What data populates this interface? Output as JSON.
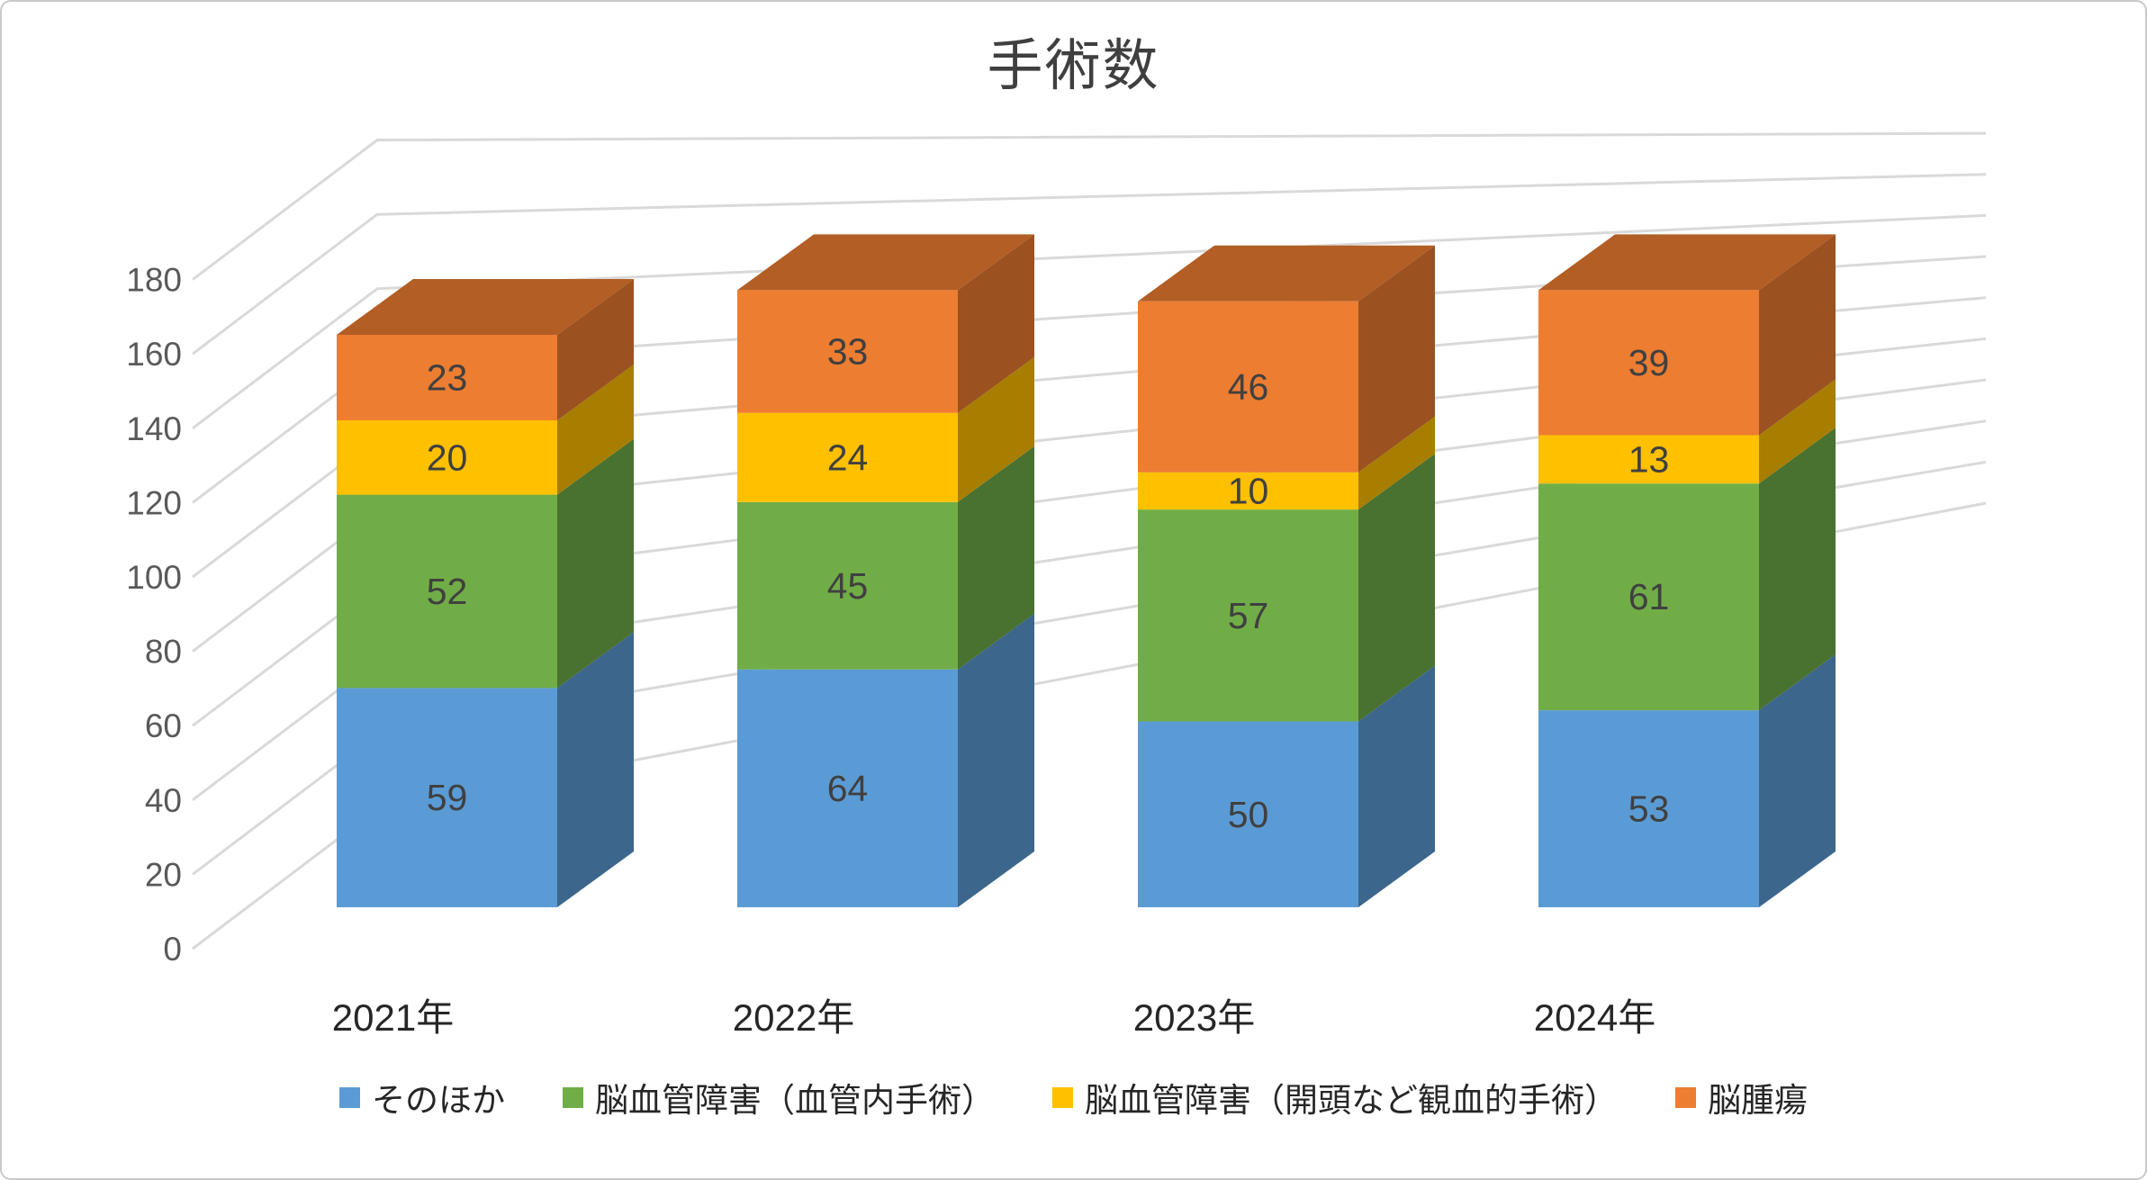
{
  "title": "手術数",
  "chart_data": {
    "type": "bar",
    "stacked": true,
    "effect": "3d-column",
    "title": "手術数",
    "categories": [
      "2021年",
      "2022年",
      "2023年",
      "2024年"
    ],
    "series": [
      {
        "name": "そのほか",
        "color": "#5B9BD5",
        "values": [
          59,
          64,
          50,
          53
        ]
      },
      {
        "name": "脳血管障害（血管内手術）",
        "color": "#70AD47",
        "values": [
          52,
          45,
          57,
          61
        ]
      },
      {
        "name": "脳血管障害（開頭など観血的手術）",
        "color": "#FFC000",
        "values": [
          20,
          24,
          10,
          13
        ]
      },
      {
        "name": "脳腫瘍",
        "color": "#ED7D31",
        "values": [
          23,
          33,
          46,
          39
        ]
      }
    ],
    "totals": [
      154,
      166,
      163,
      166
    ],
    "ylim": [
      0,
      180
    ],
    "ytick_step": 20,
    "yticks": [
      "0",
      "20",
      "40",
      "60",
      "80",
      "100",
      "120",
      "140",
      "160",
      "180"
    ],
    "xlabel": "",
    "ylabel": "",
    "grid": true,
    "legend_position": "bottom",
    "data_labels": true
  },
  "style": {
    "gridline_color": "#D9D9D9",
    "axis_label_color": "#595959",
    "data_label_color": "#404040",
    "category_label_color": "#262626",
    "title_color": "#3F3F3F",
    "frame_border_color": "#C9C9C9",
    "background_color": "#FFFFFF"
  }
}
